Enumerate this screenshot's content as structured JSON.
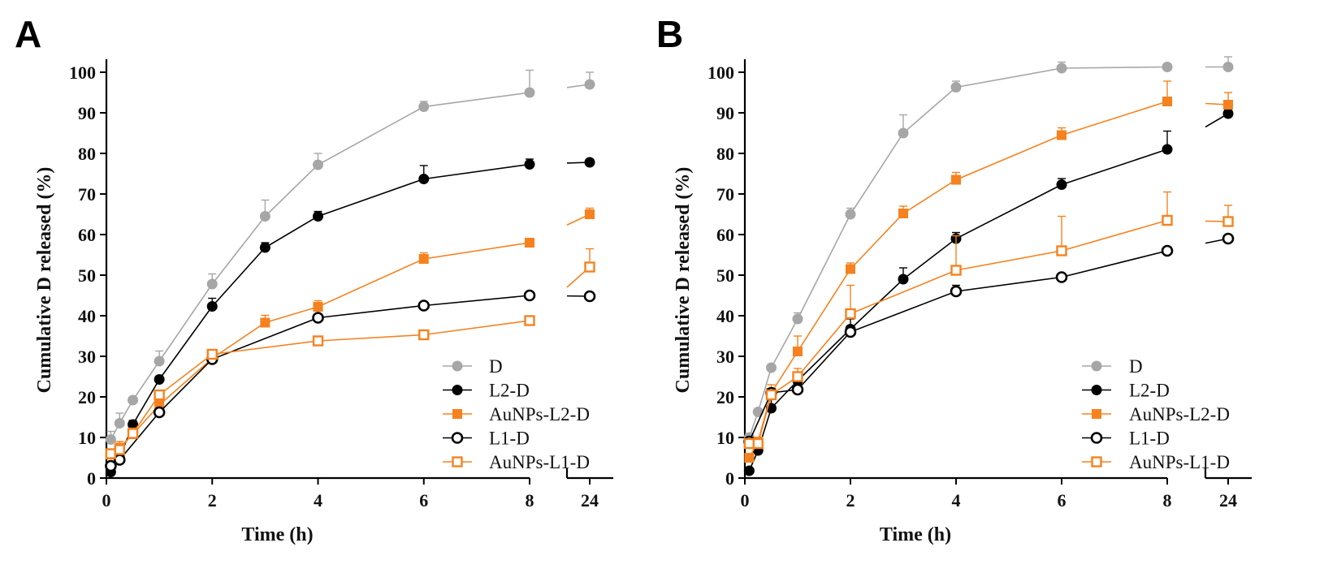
{
  "colors": {
    "D": "#a6a6a6",
    "L2-D": "#000000",
    "AuNPs-L2-D": "#f5821f",
    "L1-D": "#000000",
    "AuNPs-L1-D": "#f5821f"
  },
  "chart_data": [
    {
      "panel": "A",
      "type": "line",
      "xlabel": "Time (h)",
      "ylabel": "Cumulative D released (%)",
      "ylim": [
        0,
        100
      ],
      "yticks": [
        0,
        10,
        20,
        30,
        40,
        50,
        60,
        70,
        80,
        90,
        100
      ],
      "xticks": [
        0,
        2,
        4,
        6,
        8
      ],
      "xticks_break": [
        24
      ],
      "xlim_main": [
        0,
        8
      ],
      "legend_position": "bottom-right",
      "series": [
        {
          "name": "D",
          "marker": "filled-circle",
          "x": [
            0.083,
            0.25,
            0.5,
            1,
            2,
            3,
            4,
            6,
            8,
            24
          ],
          "y": [
            9.5,
            13.5,
            19.2,
            28.8,
            47.8,
            64.5,
            77.2,
            91.5,
            95.0,
            97.0
          ],
          "err": [
            2.0,
            2.5,
            0.8,
            2.5,
            2.5,
            4.0,
            2.8,
            1.3,
            5.5,
            3.0
          ]
        },
        {
          "name": "L2-D",
          "marker": "filled-circle",
          "x": [
            0.083,
            0.25,
            0.5,
            1,
            2,
            3,
            4,
            6,
            8,
            24
          ],
          "y": [
            1.5,
            5.0,
            13.2,
            24.3,
            42.3,
            56.8,
            64.5,
            73.7,
            77.3,
            77.8
          ],
          "err": [
            0.8,
            1.2,
            1.0,
            0.8,
            2.0,
            1.2,
            1.2,
            3.3,
            1.3,
            0.3
          ]
        },
        {
          "name": "AuNPs-L2-D",
          "marker": "filled-square",
          "x": [
            0.083,
            0.25,
            0.5,
            1,
            2,
            3,
            4,
            6,
            8,
            24
          ],
          "y": [
            5.8,
            7.5,
            10.8,
            18.0,
            29.5,
            38.3,
            42.2,
            54.0,
            58.0,
            65.0
          ],
          "err": [
            1.0,
            1.5,
            1.5,
            1.0,
            1.5,
            1.8,
            1.5,
            1.5,
            0.5,
            1.5
          ]
        },
        {
          "name": "L1-D",
          "marker": "open-circle",
          "x": [
            0.083,
            0.25,
            1,
            2,
            4,
            6,
            8,
            24
          ],
          "y": [
            3.0,
            4.5,
            16.2,
            29.3,
            39.5,
            42.5,
            45.0,
            44.8
          ],
          "err": [
            0.5,
            0.5,
            0.5,
            1.0,
            0.8,
            0.5,
            0.5,
            0.3
          ]
        },
        {
          "name": "AuNPs-L1-D",
          "marker": "open-square",
          "x": [
            0.083,
            0.25,
            0.5,
            1,
            2,
            4,
            6,
            8,
            24
          ],
          "y": [
            6.0,
            7.0,
            11.0,
            20.5,
            30.5,
            33.8,
            35.3,
            38.8,
            52.0
          ],
          "err": [
            1.0,
            1.0,
            1.0,
            1.0,
            1.0,
            0.5,
            0.5,
            0.5,
            4.5
          ]
        }
      ]
    },
    {
      "panel": "B",
      "type": "line",
      "xlabel": "Time (h)",
      "ylabel": "Cumulative D released (%)",
      "ylim": [
        0,
        100
      ],
      "yticks": [
        0,
        10,
        20,
        30,
        40,
        50,
        60,
        70,
        80,
        90,
        100
      ],
      "xticks": [
        0,
        2,
        4,
        6,
        8
      ],
      "xticks_break": [
        24
      ],
      "xlim_main": [
        0,
        8
      ],
      "legend_position": "bottom-right",
      "series": [
        {
          "name": "D",
          "marker": "filled-circle",
          "x": [
            0.083,
            0.25,
            0.5,
            1,
            2,
            3,
            4,
            6,
            8,
            24
          ],
          "y": [
            10.0,
            16.3,
            27.2,
            39.2,
            65.0,
            85.0,
            96.3,
            101.0,
            101.3,
            101.3
          ],
          "err": [
            1.0,
            0.5,
            0.5,
            1.5,
            1.5,
            4.5,
            1.5,
            1.5,
            0.3,
            2.5
          ]
        },
        {
          "name": "L2-D",
          "marker": "filled-circle",
          "x": [
            0.083,
            0.25,
            0.5,
            1,
            2,
            3,
            4,
            6,
            8,
            24
          ],
          "y": [
            1.8,
            6.8,
            17.2,
            24.0,
            36.7,
            49.0,
            59.0,
            72.3,
            81.0,
            89.8
          ],
          "err": [
            0.5,
            1.5,
            4.5,
            1.5,
            2.5,
            2.8,
            1.5,
            1.5,
            4.5,
            1.0
          ]
        },
        {
          "name": "AuNPs-L2-D",
          "marker": "filled-square",
          "x": [
            0.083,
            0.25,
            0.5,
            1,
            2,
            3,
            4,
            6,
            8,
            24
          ],
          "y": [
            5.0,
            9.0,
            21.0,
            31.2,
            51.5,
            65.2,
            73.5,
            84.5,
            92.8,
            92.0
          ],
          "err": [
            1.0,
            1.0,
            2.0,
            3.8,
            1.5,
            1.8,
            1.8,
            1.8,
            5.0,
            3.0
          ]
        },
        {
          "name": "L1-D",
          "marker": "open-circle",
          "x": [
            0.083,
            0.5,
            1,
            2,
            4,
            6,
            8,
            24
          ],
          "y": [
            9.0,
            21.0,
            21.8,
            36.0,
            46.0,
            49.5,
            56.0,
            59.0
          ],
          "err": [
            0.5,
            1.0,
            0.5,
            1.5,
            1.5,
            0.5,
            0.5,
            0.5
          ]
        },
        {
          "name": "AuNPs-L1-D",
          "marker": "open-square",
          "x": [
            0.083,
            0.25,
            0.5,
            1,
            2,
            4,
            6,
            8,
            24
          ],
          "y": [
            8.5,
            8.5,
            20.5,
            25.0,
            40.5,
            51.2,
            56.0,
            63.5,
            63.2
          ],
          "err": [
            1.0,
            1.0,
            1.0,
            2.0,
            7.0,
            8.5,
            8.5,
            7.0,
            4.0
          ]
        }
      ]
    }
  ]
}
